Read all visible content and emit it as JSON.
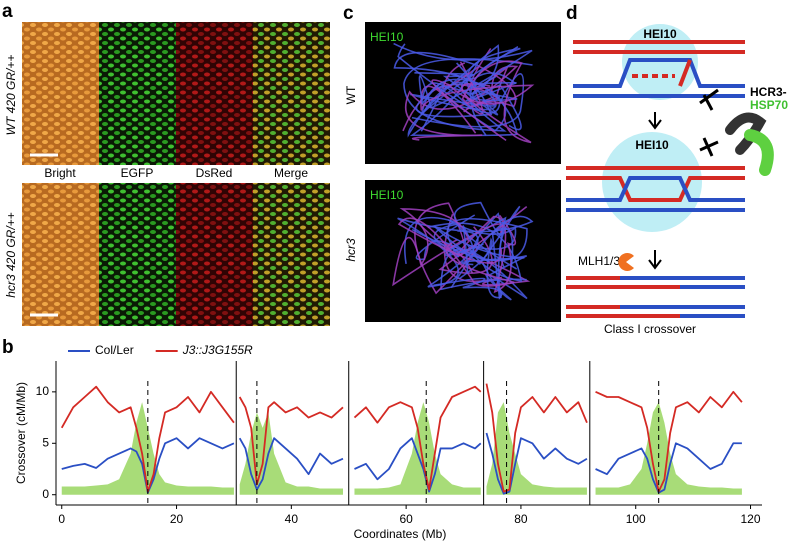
{
  "panel_a": {
    "label": "a",
    "rows": [
      "WT 420 GR/++",
      "hcr3 420 GR/++"
    ],
    "columns": [
      "Bright",
      "EGFP",
      "DsRed",
      "Merge"
    ]
  },
  "panel_c": {
    "label": "c",
    "rows": [
      {
        "stain": "HEI10",
        "genotype": "WT"
      },
      {
        "stain": "HEI10",
        "genotype": "hcr3"
      }
    ]
  },
  "panel_d": {
    "label": "d",
    "focus_top": "HEI10",
    "focus_mid": "HEI10",
    "inhibitor_1": "HCR3-",
    "inhibitor_2": "HSP70",
    "resolvase": "MLH1/3",
    "outcome": "Class I crossover"
  },
  "chart_data": {
    "label": "b",
    "type": "line",
    "xlabel": "Coordinates (Mb)",
    "ylabel": "Crossover (cM/Mb)",
    "xlim": [
      -1,
      122
    ],
    "ylim": [
      -1,
      13
    ],
    "xticks": [
      0,
      20,
      40,
      60,
      80,
      100,
      120
    ],
    "yticks": [
      0,
      5,
      10
    ],
    "chromosome_boundaries": [
      30.4,
      50,
      73.5,
      92
    ],
    "centromeres": [
      15,
      34,
      63.5,
      77.5,
      104
    ],
    "x": [
      0,
      2,
      4,
      6,
      8,
      10,
      12,
      13,
      14,
      15,
      16,
      17,
      18,
      20,
      22,
      24,
      26,
      28,
      30,
      30.4,
      31,
      32,
      33,
      34,
      35,
      36,
      37,
      39,
      41,
      43,
      45,
      47,
      49,
      50,
      51,
      53,
      55,
      57,
      59,
      61,
      62,
      63,
      64,
      65,
      66,
      68,
      70,
      72,
      73,
      73.5,
      74,
      75,
      76,
      77,
      78,
      79,
      80,
      82,
      84,
      86,
      88,
      90,
      91.5,
      92,
      93,
      95,
      97,
      99,
      101,
      102,
      103,
      104,
      105,
      106,
      107,
      109,
      111,
      113,
      115,
      117,
      118.5
    ],
    "series": [
      {
        "color": "#a8dc78",
        "fill": true,
        "values": [
          0.8,
          0.8,
          0.8,
          0.9,
          1.0,
          1.5,
          4,
          7,
          9,
          6.5,
          4,
          2,
          1.2,
          0.9,
          0.8,
          0.8,
          0.8,
          0.7,
          0.7,
          null,
          1,
          3,
          6,
          8,
          6.5,
          8,
          4,
          1.2,
          0.8,
          0.8,
          0.6,
          0.6,
          0.6,
          null,
          0.6,
          0.6,
          0.6,
          0.7,
          1,
          4,
          7,
          9,
          7,
          4,
          2,
          1,
          0.7,
          0.7,
          0.7,
          null,
          0.8,
          3,
          8,
          9,
          6,
          4,
          2,
          1,
          0.8,
          0.7,
          0.7,
          0.7,
          0.7,
          null,
          0.7,
          0.7,
          0.7,
          1,
          2.5,
          5,
          8,
          9,
          7,
          4,
          2,
          1,
          0.8,
          0.7,
          0.7,
          0.6,
          0.6
        ]
      },
      {
        "name": "Col/Ler",
        "color": "#2a4fc4",
        "values": [
          2.5,
          2.8,
          3.0,
          2.6,
          3.5,
          4.0,
          4.5,
          4.2,
          3.0,
          0.2,
          1.5,
          3.5,
          5.0,
          5.5,
          4.5,
          5.5,
          5.0,
          4.5,
          5.0,
          null,
          5.5,
          4.5,
          2.0,
          0.5,
          1.5,
          4.0,
          5.5,
          4.5,
          3.5,
          2.0,
          4.0,
          3.0,
          3.5,
          null,
          2.5,
          3.0,
          1.5,
          2.5,
          4.5,
          5.5,
          4.0,
          2.5,
          0.3,
          2.0,
          4.5,
          4.5,
          5.0,
          4.5,
          5.0,
          null,
          6.0,
          4.0,
          1.5,
          0.1,
          0.3,
          3.0,
          5.5,
          5.0,
          3.5,
          4.5,
          3.5,
          3.0,
          3.5,
          null,
          2.5,
          2.0,
          3.5,
          4.0,
          4.5,
          3.5,
          1.5,
          0.2,
          0.5,
          3.0,
          5.0,
          4.5,
          3.5,
          2.5,
          3.0,
          5.0,
          5.0
        ]
      },
      {
        "name": "J3::J3G155R",
        "color": "#d42a24",
        "values": [
          6.5,
          8.5,
          9.5,
          10.5,
          9.0,
          8.0,
          8.5,
          6.5,
          4.0,
          0.3,
          2.0,
          5.5,
          8.0,
          8.5,
          9.5,
          8.0,
          10.0,
          8.5,
          7.0,
          null,
          9.5,
          8.5,
          6.5,
          1.0,
          3.0,
          8.5,
          9.0,
          8.0,
          8.5,
          7.5,
          8.0,
          7.5,
          8.5,
          null,
          7.5,
          8.5,
          7.0,
          8.5,
          9.0,
          8.5,
          6.5,
          3.0,
          0.5,
          4.0,
          7.5,
          9.5,
          10.0,
          10.5,
          10.0,
          null,
          10.8,
          8.0,
          3.0,
          0.3,
          0.5,
          6.0,
          8.5,
          9.5,
          8.0,
          9.5,
          8.0,
          9.0,
          7.0,
          null,
          10.0,
          9.5,
          9.5,
          9.0,
          8.5,
          6.5,
          3.0,
          0.3,
          1.5,
          6.0,
          8.5,
          9.0,
          8.0,
          9.5,
          8.5,
          10.0,
          9.0
        ]
      }
    ]
  }
}
